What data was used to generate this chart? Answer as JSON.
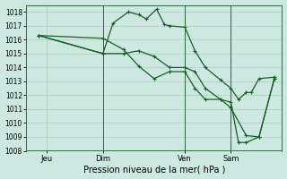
{
  "background_color": "#cce8e0",
  "grid_color": "#aaccbb",
  "line_color": "#1a5c2a",
  "title": "Pression niveau de la mer( hPa )",
  "ylim": [
    1008,
    1018.5
  ],
  "yticks": [
    1008,
    1009,
    1010,
    1011,
    1012,
    1013,
    1014,
    1015,
    1016,
    1017,
    1018
  ],
  "xlim": [
    0,
    100
  ],
  "xtick_positions": [
    8,
    30,
    62,
    80
  ],
  "xtick_labels": [
    "Jeu",
    "Dim",
    "Ven",
    "Sam"
  ],
  "vline_positions": [
    30,
    62,
    80
  ],
  "series1_x": [
    5,
    30,
    38,
    44,
    50,
    56,
    62,
    66,
    70,
    76,
    80,
    86,
    91,
    97
  ],
  "series1_y": [
    1016.3,
    1016.1,
    1015.3,
    1014.1,
    1013.2,
    1013.7,
    1013.7,
    1012.5,
    1011.7,
    1011.7,
    1011.1,
    1009.1,
    1009.0,
    1013.2
  ],
  "series2_x": [
    5,
    30,
    38,
    44,
    50,
    56,
    62,
    66,
    70,
    76,
    80,
    83,
    86,
    91,
    97
  ],
  "series2_y": [
    1016.3,
    1015.0,
    1015.0,
    1015.2,
    1014.8,
    1014.0,
    1014.0,
    1013.7,
    1012.5,
    1011.7,
    1011.5,
    1008.6,
    1008.6,
    1009.0,
    1013.2
  ],
  "series3_x": [
    5,
    30,
    34,
    40,
    44,
    47,
    51,
    54,
    56,
    62,
    66,
    70,
    76,
    80,
    83,
    86,
    88,
    91,
    97
  ],
  "series3_y": [
    1016.3,
    1015.0,
    1017.2,
    1018.0,
    1017.8,
    1017.5,
    1018.2,
    1017.1,
    1017.0,
    1016.9,
    1015.2,
    1014.0,
    1013.1,
    1012.5,
    1011.7,
    1012.2,
    1012.2,
    1013.2,
    1013.3
  ],
  "markersize": 3,
  "linewidth": 0.9,
  "title_fontsize": 7,
  "ytick_fontsize": 5.5,
  "xtick_fontsize": 6
}
